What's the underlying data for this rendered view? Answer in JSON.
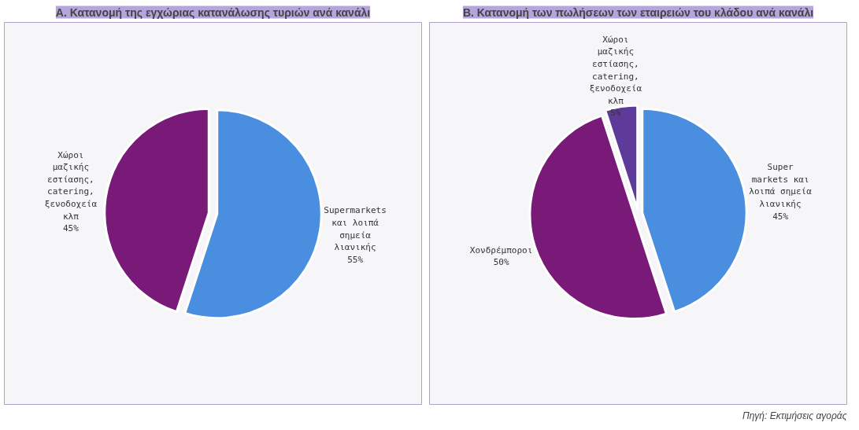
{
  "chart_data": [
    {
      "type": "pie",
      "title": "Α. Κατανομή της εγχώριας κατανάλωσης τυριών ανά κανάλι",
      "categories": [
        "Supermarkets και λοιπά σημεία λιανικής",
        "Χώροι μαζικής εστίασης, catering, ξενοδοχεία κλπ"
      ],
      "values": [
        55,
        45
      ],
      "value_labels": [
        "55%",
        "45%"
      ],
      "colors": [
        "#4a8ee0",
        "#7a1a78"
      ]
    },
    {
      "type": "pie",
      "title": "Β. Κατανομή των πωλήσεων των εταιρειών του κλάδου ανά κανάλι",
      "categories": [
        "Super markets και λοιπά σημεία λιανικής",
        "Χονδρέμποροι",
        "Χώροι μαζικής εστίασης, catering, ξενοδοχεία κλπ"
      ],
      "values": [
        45,
        50,
        5
      ],
      "value_labels": [
        "45%",
        "50%",
        "5%"
      ],
      "colors": [
        "#4a8ee0",
        "#7a1a78",
        "#5e3a9a"
      ],
      "annotations": [
        "Πηγή: Εκτιμήσεις αγοράς"
      ]
    }
  ]
}
